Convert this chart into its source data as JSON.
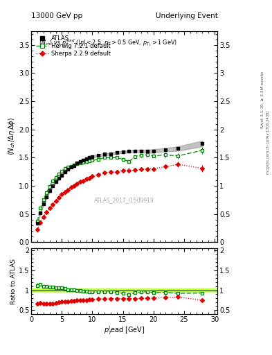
{
  "title_left": "13000 GeV pp",
  "title_right": "Underlying Event",
  "watermark": "ATLAS_2017_I1509919",
  "atlas_x": [
    1.0,
    1.5,
    2.0,
    2.5,
    3.0,
    3.5,
    4.0,
    4.5,
    5.0,
    5.5,
    6.0,
    6.5,
    7.0,
    7.5,
    8.0,
    8.5,
    9.0,
    9.5,
    10.0,
    11.0,
    12.0,
    13.0,
    14.0,
    15.0,
    16.0,
    17.0,
    18.0,
    19.0,
    20.0,
    22.0,
    24.0,
    28.0
  ],
  "atlas_y": [
    0.33,
    0.52,
    0.68,
    0.8,
    0.91,
    1.0,
    1.07,
    1.13,
    1.19,
    1.25,
    1.3,
    1.33,
    1.36,
    1.4,
    1.43,
    1.46,
    1.48,
    1.5,
    1.52,
    1.54,
    1.56,
    1.57,
    1.59,
    1.6,
    1.61,
    1.62,
    1.62,
    1.61,
    1.62,
    1.64,
    1.66,
    1.75
  ],
  "atlas_yerr": [
    0.02,
    0.02,
    0.02,
    0.02,
    0.02,
    0.02,
    0.02,
    0.02,
    0.02,
    0.02,
    0.02,
    0.02,
    0.02,
    0.02,
    0.02,
    0.02,
    0.02,
    0.02,
    0.02,
    0.02,
    0.02,
    0.02,
    0.02,
    0.02,
    0.02,
    0.02,
    0.02,
    0.03,
    0.03,
    0.03,
    0.04,
    0.05
  ],
  "herwig_x": [
    1.0,
    1.5,
    2.0,
    2.5,
    3.0,
    3.5,
    4.0,
    4.5,
    5.0,
    5.5,
    6.0,
    6.5,
    7.0,
    7.5,
    8.0,
    8.5,
    9.0,
    9.5,
    10.0,
    11.0,
    12.0,
    13.0,
    14.0,
    15.0,
    16.0,
    17.0,
    18.0,
    19.0,
    20.0,
    22.0,
    24.0,
    28.0
  ],
  "herwig_y": [
    0.37,
    0.6,
    0.75,
    0.88,
    0.99,
    1.08,
    1.15,
    1.21,
    1.26,
    1.31,
    1.33,
    1.35,
    1.37,
    1.39,
    1.41,
    1.42,
    1.43,
    1.44,
    1.45,
    1.47,
    1.5,
    1.5,
    1.5,
    1.47,
    1.43,
    1.52,
    1.54,
    1.55,
    1.53,
    1.55,
    1.53,
    1.63
  ],
  "herwig_yerr": [
    0.02,
    0.02,
    0.02,
    0.02,
    0.02,
    0.02,
    0.02,
    0.02,
    0.02,
    0.02,
    0.02,
    0.02,
    0.02,
    0.02,
    0.02,
    0.02,
    0.02,
    0.02,
    0.02,
    0.02,
    0.02,
    0.02,
    0.02,
    0.02,
    0.02,
    0.02,
    0.03,
    0.03,
    0.03,
    0.04,
    0.05,
    0.06
  ],
  "sherpa_x": [
    1.0,
    1.5,
    2.0,
    2.5,
    3.0,
    3.5,
    4.0,
    4.5,
    5.0,
    5.5,
    6.0,
    6.5,
    7.0,
    7.5,
    8.0,
    8.5,
    9.0,
    9.5,
    10.0,
    11.0,
    12.0,
    13.0,
    14.0,
    15.0,
    16.0,
    17.0,
    18.0,
    19.0,
    20.0,
    22.0,
    24.0,
    28.0
  ],
  "sherpa_y": [
    0.22,
    0.35,
    0.45,
    0.53,
    0.6,
    0.67,
    0.73,
    0.79,
    0.85,
    0.89,
    0.93,
    0.97,
    1.0,
    1.04,
    1.07,
    1.09,
    1.12,
    1.14,
    1.17,
    1.2,
    1.23,
    1.24,
    1.25,
    1.27,
    1.27,
    1.28,
    1.29,
    1.3,
    1.3,
    1.34,
    1.38,
    1.31
  ],
  "sherpa_yerr": [
    0.01,
    0.01,
    0.01,
    0.01,
    0.01,
    0.01,
    0.01,
    0.01,
    0.01,
    0.01,
    0.01,
    0.01,
    0.01,
    0.01,
    0.01,
    0.01,
    0.01,
    0.01,
    0.01,
    0.01,
    0.01,
    0.01,
    0.01,
    0.01,
    0.01,
    0.02,
    0.02,
    0.02,
    0.03,
    0.04,
    0.05,
    0.06
  ],
  "herwig_ratio": [
    1.12,
    1.15,
    1.1,
    1.1,
    1.09,
    1.08,
    1.07,
    1.07,
    1.06,
    1.05,
    1.02,
    1.02,
    1.01,
    0.99,
    0.99,
    0.97,
    0.97,
    0.96,
    0.955,
    0.955,
    0.962,
    0.956,
    0.943,
    0.919,
    0.888,
    0.938,
    0.951,
    0.963,
    0.944,
    0.945,
    0.922,
    0.931
  ],
  "sherpa_ratio": [
    0.667,
    0.673,
    0.662,
    0.663,
    0.659,
    0.67,
    0.682,
    0.699,
    0.714,
    0.712,
    0.715,
    0.729,
    0.735,
    0.743,
    0.748,
    0.747,
    0.757,
    0.76,
    0.77,
    0.779,
    0.788,
    0.79,
    0.787,
    0.794,
    0.789,
    0.79,
    0.796,
    0.807,
    0.802,
    0.817,
    0.831,
    0.749
  ],
  "ylim_main": [
    0.0,
    3.75
  ],
  "ylim_ratio": [
    0.4,
    2.05
  ],
  "xlim": [
    0.5,
    30.5
  ],
  "yticks_main": [
    0.0,
    0.5,
    1.0,
    1.5,
    2.0,
    2.5,
    3.0,
    3.5
  ],
  "yticks_ratio": [
    0.5,
    1.0,
    1.5,
    2.0
  ],
  "xticks": [
    0,
    5,
    10,
    15,
    20,
    25,
    30
  ],
  "atlas_color": "black",
  "herwig_color": "#008800",
  "sherpa_color": "#dd0000",
  "band_color": "#bbff44"
}
